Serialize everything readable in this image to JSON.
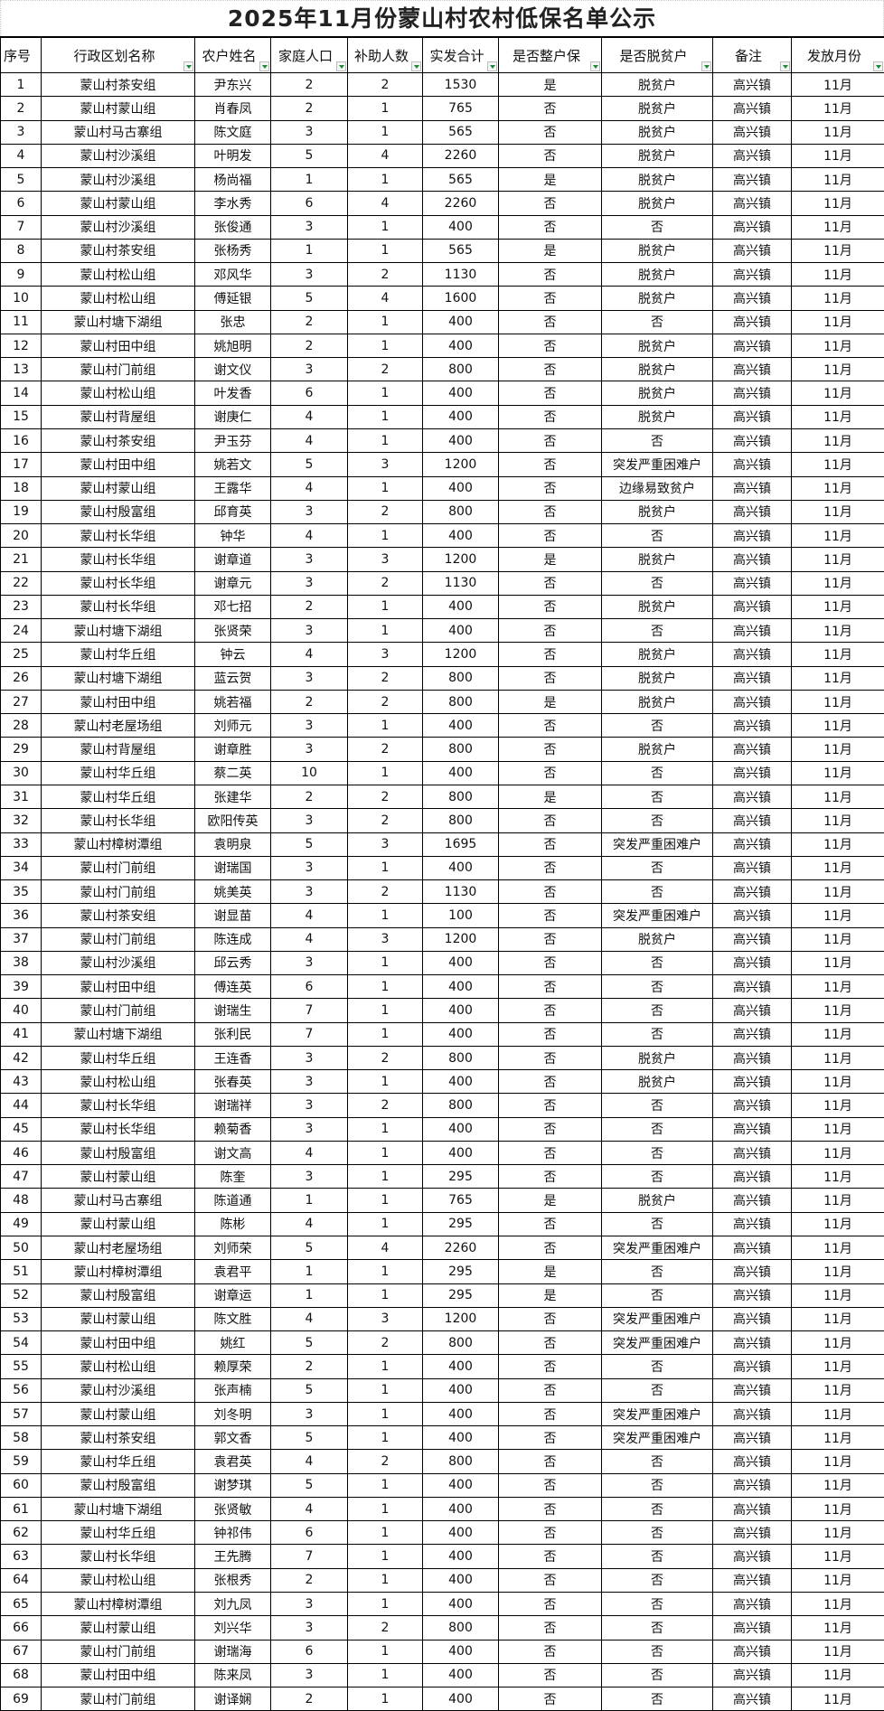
{
  "title": "2025年11月份蒙山村农村低保名单公示",
  "columns": [
    "序号",
    "行政区划名称",
    "农户姓名",
    "家庭人口",
    "补助人数",
    "实发合计",
    "是否整户保",
    "是否脱贫户",
    "备注",
    "发放月份"
  ],
  "rows": [
    [
      "1",
      "蒙山村茶安组",
      "尹东兴",
      "2",
      "2",
      "1530",
      "是",
      "脱贫户",
      "高兴镇",
      "11月"
    ],
    [
      "2",
      "蒙山村蒙山组",
      "肖春凤",
      "2",
      "1",
      "765",
      "否",
      "脱贫户",
      "高兴镇",
      "11月"
    ],
    [
      "3",
      "蒙山村马古寨组",
      "陈文庭",
      "3",
      "1",
      "565",
      "否",
      "脱贫户",
      "高兴镇",
      "11月"
    ],
    [
      "4",
      "蒙山村沙溪组",
      "叶明发",
      "5",
      "4",
      "2260",
      "否",
      "脱贫户",
      "高兴镇",
      "11月"
    ],
    [
      "5",
      "蒙山村沙溪组",
      "杨尚福",
      "1",
      "1",
      "565",
      "是",
      "脱贫户",
      "高兴镇",
      "11月"
    ],
    [
      "6",
      "蒙山村蒙山组",
      "李水秀",
      "6",
      "4",
      "2260",
      "否",
      "脱贫户",
      "高兴镇",
      "11月"
    ],
    [
      "7",
      "蒙山村沙溪组",
      "张俊通",
      "3",
      "1",
      "400",
      "否",
      "否",
      "高兴镇",
      "11月"
    ],
    [
      "8",
      "蒙山村茶安组",
      "张杨秀",
      "1",
      "1",
      "565",
      "是",
      "脱贫户",
      "高兴镇",
      "11月"
    ],
    [
      "9",
      "蒙山村松山组",
      "邓风华",
      "3",
      "2",
      "1130",
      "否",
      "脱贫户",
      "高兴镇",
      "11月"
    ],
    [
      "10",
      "蒙山村松山组",
      "傅延银",
      "5",
      "4",
      "1600",
      "否",
      "脱贫户",
      "高兴镇",
      "11月"
    ],
    [
      "11",
      "蒙山村塘下湖组",
      "张忠",
      "2",
      "1",
      "400",
      "否",
      "否",
      "高兴镇",
      "11月"
    ],
    [
      "12",
      "蒙山村田中组",
      "姚旭明",
      "2",
      "1",
      "400",
      "否",
      "脱贫户",
      "高兴镇",
      "11月"
    ],
    [
      "13",
      "蒙山村门前组",
      "谢文仪",
      "3",
      "2",
      "800",
      "否",
      "脱贫户",
      "高兴镇",
      "11月"
    ],
    [
      "14",
      "蒙山村松山组",
      "叶发香",
      "6",
      "1",
      "400",
      "否",
      "脱贫户",
      "高兴镇",
      "11月"
    ],
    [
      "15",
      "蒙山村背屋组",
      "谢庚仁",
      "4",
      "1",
      "400",
      "否",
      "脱贫户",
      "高兴镇",
      "11月"
    ],
    [
      "16",
      "蒙山村茶安组",
      "尹玉芬",
      "4",
      "1",
      "400",
      "否",
      "否",
      "高兴镇",
      "11月"
    ],
    [
      "17",
      "蒙山村田中组",
      "姚若文",
      "5",
      "3",
      "1200",
      "否",
      "突发严重困难户",
      "高兴镇",
      "11月"
    ],
    [
      "18",
      "蒙山村蒙山组",
      "王露华",
      "4",
      "1",
      "400",
      "否",
      "边缘易致贫户",
      "高兴镇",
      "11月"
    ],
    [
      "19",
      "蒙山村殷富组",
      "邱育英",
      "3",
      "2",
      "800",
      "否",
      "脱贫户",
      "高兴镇",
      "11月"
    ],
    [
      "20",
      "蒙山村长华组",
      "钟华",
      "4",
      "1",
      "400",
      "否",
      "否",
      "高兴镇",
      "11月"
    ],
    [
      "21",
      "蒙山村长华组",
      "谢章道",
      "3",
      "3",
      "1200",
      "是",
      "脱贫户",
      "高兴镇",
      "11月"
    ],
    [
      "22",
      "蒙山村长华组",
      "谢章元",
      "3",
      "2",
      "1130",
      "否",
      "否",
      "高兴镇",
      "11月"
    ],
    [
      "23",
      "蒙山村长华组",
      "邓七招",
      "2",
      "1",
      "400",
      "否",
      "脱贫户",
      "高兴镇",
      "11月"
    ],
    [
      "24",
      "蒙山村塘下湖组",
      "张贤荣",
      "3",
      "1",
      "400",
      "否",
      "否",
      "高兴镇",
      "11月"
    ],
    [
      "25",
      "蒙山村华丘组",
      "钟云",
      "4",
      "3",
      "1200",
      "否",
      "脱贫户",
      "高兴镇",
      "11月"
    ],
    [
      "26",
      "蒙山村塘下湖组",
      "蓝云贺",
      "3",
      "2",
      "800",
      "否",
      "脱贫户",
      "高兴镇",
      "11月"
    ],
    [
      "27",
      "蒙山村田中组",
      "姚若福",
      "2",
      "2",
      "800",
      "是",
      "脱贫户",
      "高兴镇",
      "11月"
    ],
    [
      "28",
      "蒙山村老屋场组",
      "刘师元",
      "3",
      "1",
      "400",
      "否",
      "否",
      "高兴镇",
      "11月"
    ],
    [
      "29",
      "蒙山村背屋组",
      "谢章胜",
      "3",
      "2",
      "800",
      "否",
      "脱贫户",
      "高兴镇",
      "11月"
    ],
    [
      "30",
      "蒙山村华丘组",
      "蔡二英",
      "10",
      "1",
      "400",
      "否",
      "否",
      "高兴镇",
      "11月"
    ],
    [
      "31",
      "蒙山村华丘组",
      "张建华",
      "2",
      "2",
      "800",
      "是",
      "否",
      "高兴镇",
      "11月"
    ],
    [
      "32",
      "蒙山村长华组",
      "欧阳传英",
      "3",
      "2",
      "800",
      "否",
      "否",
      "高兴镇",
      "11月"
    ],
    [
      "33",
      "蒙山村樟树潭组",
      "袁明泉",
      "5",
      "3",
      "1695",
      "否",
      "突发严重困难户",
      "高兴镇",
      "11月"
    ],
    [
      "34",
      "蒙山村门前组",
      "谢瑞国",
      "3",
      "1",
      "400",
      "否",
      "否",
      "高兴镇",
      "11月"
    ],
    [
      "35",
      "蒙山村门前组",
      "姚美英",
      "3",
      "2",
      "1130",
      "否",
      "否",
      "高兴镇",
      "11月"
    ],
    [
      "36",
      "蒙山村茶安组",
      "谢显苗",
      "4",
      "1",
      "100",
      "否",
      "突发严重困难户",
      "高兴镇",
      "11月"
    ],
    [
      "37",
      "蒙山村门前组",
      "陈连成",
      "4",
      "3",
      "1200",
      "否",
      "脱贫户",
      "高兴镇",
      "11月"
    ],
    [
      "38",
      "蒙山村沙溪组",
      "邱云秀",
      "3",
      "1",
      "400",
      "否",
      "否",
      "高兴镇",
      "11月"
    ],
    [
      "39",
      "蒙山村田中组",
      "傅连英",
      "6",
      "1",
      "400",
      "否",
      "否",
      "高兴镇",
      "11月"
    ],
    [
      "40",
      "蒙山村门前组",
      "谢瑞生",
      "7",
      "1",
      "400",
      "否",
      "否",
      "高兴镇",
      "11月"
    ],
    [
      "41",
      "蒙山村塘下湖组",
      "张利民",
      "7",
      "1",
      "400",
      "否",
      "否",
      "高兴镇",
      "11月"
    ],
    [
      "42",
      "蒙山村华丘组",
      "王连香",
      "3",
      "2",
      "800",
      "否",
      "脱贫户",
      "高兴镇",
      "11月"
    ],
    [
      "43",
      "蒙山村松山组",
      "张春英",
      "3",
      "1",
      "400",
      "否",
      "脱贫户",
      "高兴镇",
      "11月"
    ],
    [
      "44",
      "蒙山村长华组",
      "谢瑞祥",
      "3",
      "2",
      "800",
      "否",
      "否",
      "高兴镇",
      "11月"
    ],
    [
      "45",
      "蒙山村长华组",
      "赖菊香",
      "3",
      "1",
      "400",
      "否",
      "否",
      "高兴镇",
      "11月"
    ],
    [
      "46",
      "蒙山村殷富组",
      "谢文高",
      "4",
      "1",
      "400",
      "否",
      "否",
      "高兴镇",
      "11月"
    ],
    [
      "47",
      "蒙山村蒙山组",
      "陈奎",
      "3",
      "1",
      "295",
      "否",
      "否",
      "高兴镇",
      "11月"
    ],
    [
      "48",
      "蒙山村马古寨组",
      "陈道通",
      "1",
      "1",
      "765",
      "是",
      "脱贫户",
      "高兴镇",
      "11月"
    ],
    [
      "49",
      "蒙山村蒙山组",
      "陈彬",
      "4",
      "1",
      "295",
      "否",
      "否",
      "高兴镇",
      "11月"
    ],
    [
      "50",
      "蒙山村老屋场组",
      "刘师荣",
      "5",
      "4",
      "2260",
      "否",
      "突发严重困难户",
      "高兴镇",
      "11月"
    ],
    [
      "51",
      "蒙山村樟树潭组",
      "袁君平",
      "1",
      "1",
      "295",
      "是",
      "否",
      "高兴镇",
      "11月"
    ],
    [
      "52",
      "蒙山村殷富组",
      "谢章运",
      "1",
      "1",
      "295",
      "是",
      "否",
      "高兴镇",
      "11月"
    ],
    [
      "53",
      "蒙山村蒙山组",
      "陈文胜",
      "4",
      "3",
      "1200",
      "否",
      "突发严重困难户",
      "高兴镇",
      "11月"
    ],
    [
      "54",
      "蒙山村田中组",
      "姚红",
      "5",
      "2",
      "800",
      "否",
      "突发严重困难户",
      "高兴镇",
      "11月"
    ],
    [
      "55",
      "蒙山村松山组",
      "赖厚荣",
      "2",
      "1",
      "400",
      "否",
      "否",
      "高兴镇",
      "11月"
    ],
    [
      "56",
      "蒙山村沙溪组",
      "张声楠",
      "5",
      "1",
      "400",
      "否",
      "否",
      "高兴镇",
      "11月"
    ],
    [
      "57",
      "蒙山村蒙山组",
      "刘冬明",
      "3",
      "1",
      "400",
      "否",
      "突发严重困难户",
      "高兴镇",
      "11月"
    ],
    [
      "58",
      "蒙山村茶安组",
      "郭文香",
      "5",
      "1",
      "400",
      "否",
      "突发严重困难户",
      "高兴镇",
      "11月"
    ],
    [
      "59",
      "蒙山村华丘组",
      "袁君英",
      "4",
      "2",
      "800",
      "否",
      "否",
      "高兴镇",
      "11月"
    ],
    [
      "60",
      "蒙山村殷富组",
      "谢梦琪",
      "5",
      "1",
      "400",
      "否",
      "否",
      "高兴镇",
      "11月"
    ],
    [
      "61",
      "蒙山村塘下湖组",
      "张贤敏",
      "4",
      "1",
      "400",
      "否",
      "否",
      "高兴镇",
      "11月"
    ],
    [
      "62",
      "蒙山村华丘组",
      "钟祁伟",
      "6",
      "1",
      "400",
      "否",
      "否",
      "高兴镇",
      "11月"
    ],
    [
      "63",
      "蒙山村长华组",
      "王先腾",
      "7",
      "1",
      "400",
      "否",
      "否",
      "高兴镇",
      "11月"
    ],
    [
      "64",
      "蒙山村松山组",
      "张根秀",
      "2",
      "1",
      "400",
      "否",
      "否",
      "高兴镇",
      "11月"
    ],
    [
      "65",
      "蒙山村樟树潭组",
      "刘九凤",
      "3",
      "1",
      "400",
      "否",
      "否",
      "高兴镇",
      "11月"
    ],
    [
      "66",
      "蒙山村蒙山组",
      "刘兴华",
      "3",
      "2",
      "800",
      "否",
      "否",
      "高兴镇",
      "11月"
    ],
    [
      "67",
      "蒙山村门前组",
      "谢瑞海",
      "6",
      "1",
      "400",
      "否",
      "否",
      "高兴镇",
      "11月"
    ],
    [
      "68",
      "蒙山村田中组",
      "陈来凤",
      "3",
      "1",
      "400",
      "否",
      "否",
      "高兴镇",
      "11月"
    ],
    [
      "69",
      "蒙山村门前组",
      "谢译娴",
      "2",
      "1",
      "400",
      "否",
      "否",
      "高兴镇",
      "11月"
    ]
  ],
  "colors": {
    "filter_arrow": "#1a8a3a",
    "grid": "#000000"
  }
}
